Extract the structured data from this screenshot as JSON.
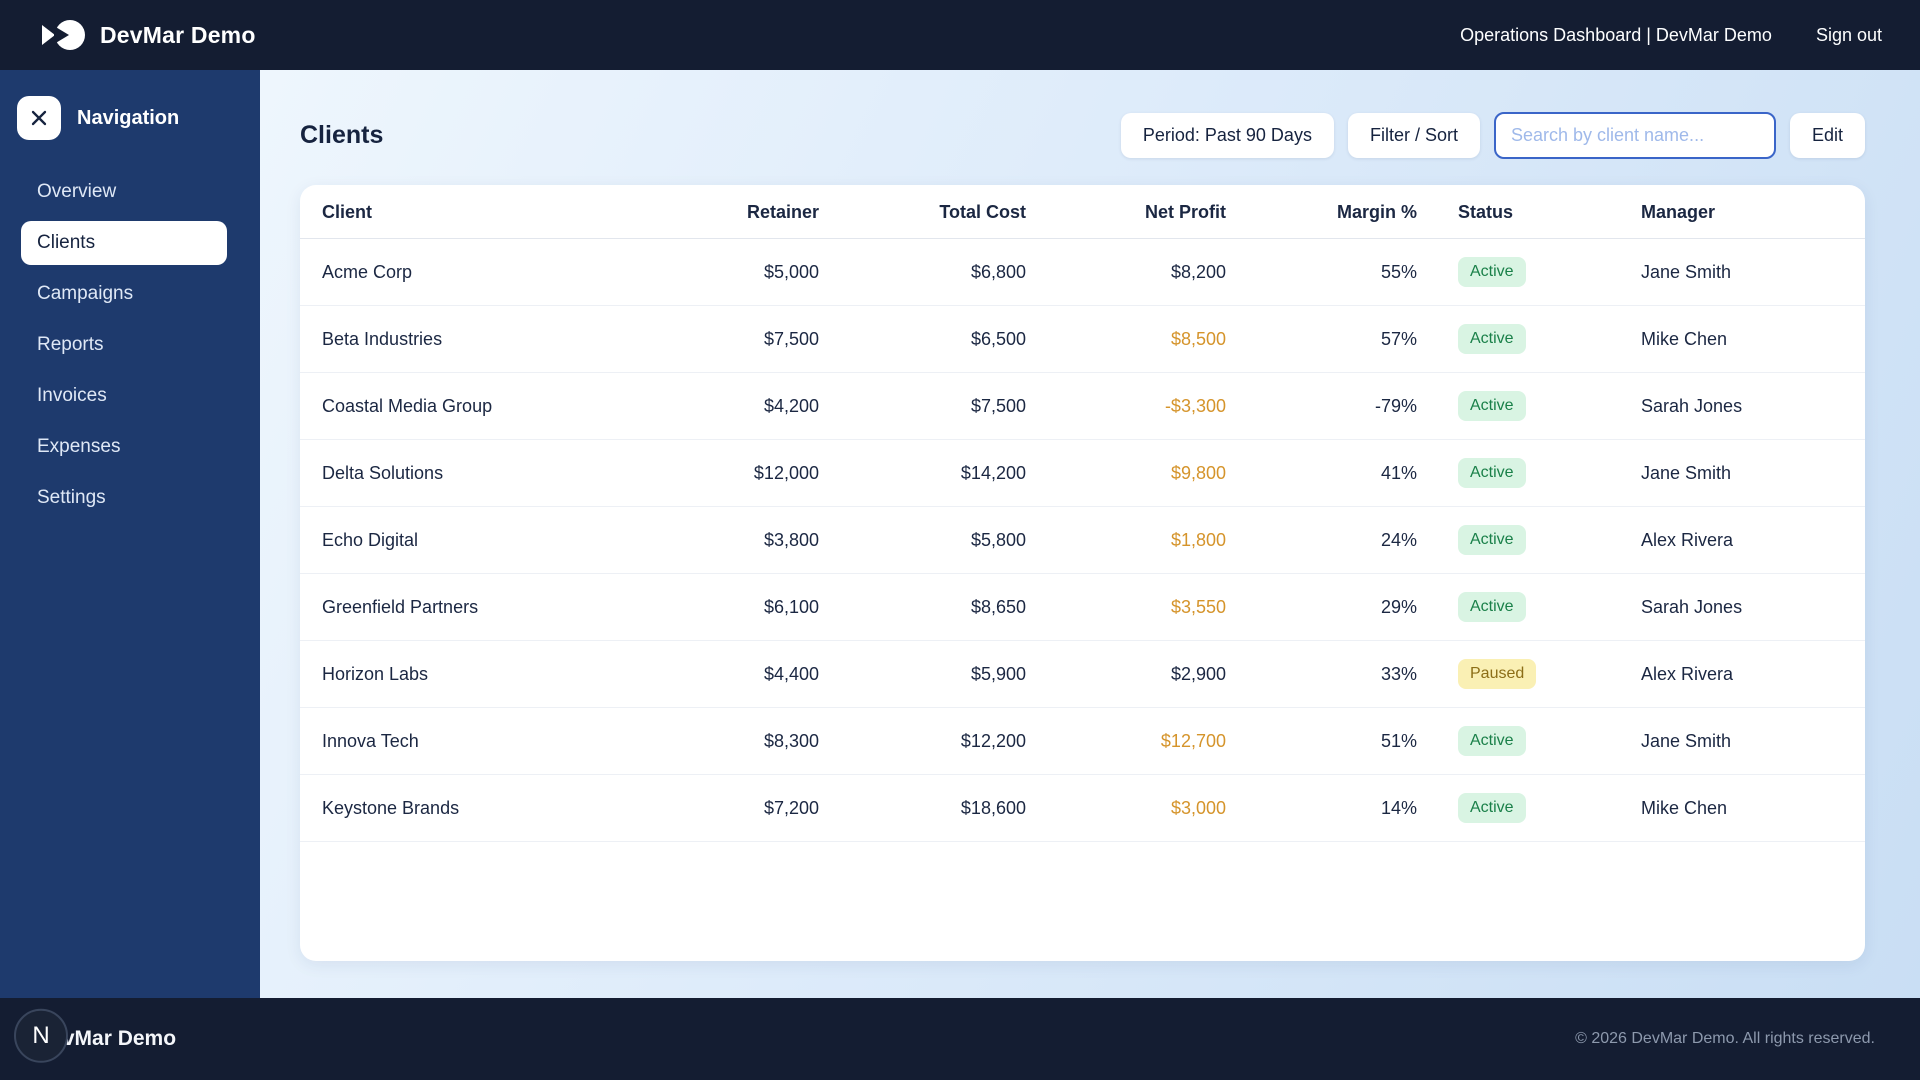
{
  "navbar": {
    "brand": "DevMar Demo",
    "context": "Operations Dashboard | DevMar Demo",
    "sign_out": "Sign out"
  },
  "sidebar": {
    "title": "Navigation",
    "items": [
      {
        "label": "Overview",
        "active": false
      },
      {
        "label": "Clients",
        "active": true
      },
      {
        "label": "Campaigns",
        "active": false
      },
      {
        "label": "Reports",
        "active": false
      },
      {
        "label": "Invoices",
        "active": false
      },
      {
        "label": "Expenses",
        "active": false
      },
      {
        "label": "Settings",
        "active": false
      }
    ]
  },
  "main": {
    "title": "Clients",
    "toolbar": {
      "period": "Period: Past 90 Days",
      "filter": "Filter / Sort",
      "search_placeholder": "Search by client name...",
      "search_value": "",
      "edit": "Edit"
    },
    "table": {
      "columns": [
        "Client",
        "Retainer",
        "Total Cost",
        "Net Profit",
        "Margin %",
        "Status",
        "Manager"
      ],
      "rows": [
        {
          "client": "Acme Corp",
          "retainer": "$5,000",
          "total_cost": "$6,800",
          "net_profit": "$8,200",
          "net_profit_accent": false,
          "margin": "55%",
          "status": "Active",
          "manager": "Jane Smith"
        },
        {
          "client": "Beta Industries",
          "retainer": "$7,500",
          "total_cost": "$6,500",
          "net_profit": "$8,500",
          "net_profit_accent": true,
          "margin": "57%",
          "status": "Active",
          "manager": "Mike Chen"
        },
        {
          "client": "Coastal Media Group",
          "retainer": "$4,200",
          "total_cost": "$7,500",
          "net_profit": "-$3,300",
          "net_profit_accent": true,
          "margin": "-79%",
          "status": "Active",
          "manager": "Sarah Jones"
        },
        {
          "client": "Delta Solutions",
          "retainer": "$12,000",
          "total_cost": "$14,200",
          "net_profit": "$9,800",
          "net_profit_accent": true,
          "margin": "41%",
          "status": "Active",
          "manager": "Jane Smith"
        },
        {
          "client": "Echo Digital",
          "retainer": "$3,800",
          "total_cost": "$5,800",
          "net_profit": "$1,800",
          "net_profit_accent": true,
          "margin": "24%",
          "status": "Active",
          "manager": "Alex Rivera"
        },
        {
          "client": "Greenfield Partners",
          "retainer": "$6,100",
          "total_cost": "$8,650",
          "net_profit": "$3,550",
          "net_profit_accent": true,
          "margin": "29%",
          "status": "Active",
          "manager": "Sarah Jones"
        },
        {
          "client": "Horizon Labs",
          "retainer": "$4,400",
          "total_cost": "$5,900",
          "net_profit": "$2,900",
          "net_profit_accent": false,
          "margin": "33%",
          "status": "Paused",
          "manager": "Alex Rivera"
        },
        {
          "client": "Innova Tech",
          "retainer": "$8,300",
          "total_cost": "$12,200",
          "net_profit": "$12,700",
          "net_profit_accent": true,
          "margin": "51%",
          "status": "Active",
          "manager": "Jane Smith"
        },
        {
          "client": "Keystone Brands",
          "retainer": "$7,200",
          "total_cost": "$18,600",
          "net_profit": "$3,000",
          "net_profit_accent": true,
          "margin": "14%",
          "status": "Active",
          "manager": "Mike Chen"
        }
      ]
    }
  },
  "footer": {
    "brand": "DevMar Demo",
    "avatar_letter": "N",
    "copyright": "© 2026 DevMar Demo. All rights reserved."
  },
  "colors": {
    "topbar": "#141D32",
    "sidebar": "#1E3A6D",
    "accent_amber": "#D5942B",
    "badge_active_bg": "#D9F4E3",
    "badge_active_text": "#1A8049",
    "badge_paused_bg": "#FAF0B4",
    "badge_paused_text": "#8C6E17",
    "search_border": "#3A65C8"
  }
}
